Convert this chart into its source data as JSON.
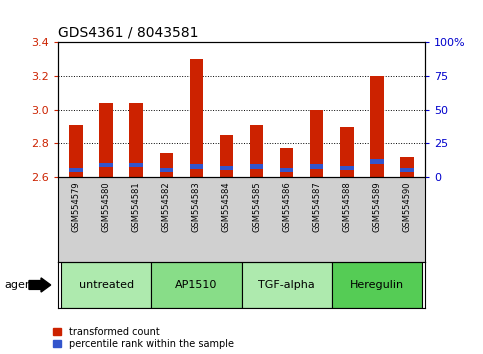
{
  "title": "GDS4361 / 8043581",
  "samples": [
    "GSM554579",
    "GSM554580",
    "GSM554581",
    "GSM554582",
    "GSM554583",
    "GSM554584",
    "GSM554585",
    "GSM554586",
    "GSM554587",
    "GSM554588",
    "GSM554589",
    "GSM554590"
  ],
  "red_values": [
    2.91,
    3.04,
    3.04,
    2.74,
    3.3,
    2.85,
    2.91,
    2.77,
    3.0,
    2.9,
    3.2,
    2.72
  ],
  "blue_bottom": [
    2.63,
    2.66,
    2.66,
    2.63,
    2.65,
    2.64,
    2.65,
    2.63,
    2.65,
    2.64,
    2.68,
    2.63
  ],
  "blue_heights": [
    0.025,
    0.025,
    0.025,
    0.025,
    0.025,
    0.025,
    0.025,
    0.025,
    0.025,
    0.025,
    0.025,
    0.025
  ],
  "base": 2.6,
  "ylim": [
    2.6,
    3.4
  ],
  "y2lim": [
    0,
    100
  ],
  "yticks_left": [
    2.6,
    2.8,
    3.0,
    3.2,
    3.4
  ],
  "yticks_right": [
    0,
    25,
    50,
    75,
    100
  ],
  "ytick_labels_right": [
    "0",
    "25",
    "50",
    "75",
    "100%"
  ],
  "groups": [
    {
      "label": "untreated",
      "start": 0,
      "end": 2,
      "color": "#aeeaae"
    },
    {
      "label": "AP1510",
      "start": 3,
      "end": 5,
      "color": "#88dd88"
    },
    {
      "label": "TGF-alpha",
      "start": 6,
      "end": 8,
      "color": "#aeeaae"
    },
    {
      "label": "Heregulin",
      "start": 9,
      "end": 11,
      "color": "#55cc55"
    }
  ],
  "red_color": "#cc2200",
  "blue_color": "#3355cc",
  "bar_width": 0.45,
  "tick_color_left": "#cc2200",
  "tick_color_right": "#0000cc",
  "legend_red": "transformed count",
  "legend_blue": "percentile rank within the sample",
  "agent_label": "agent",
  "tick_label_area_color": "#d0d0d0"
}
